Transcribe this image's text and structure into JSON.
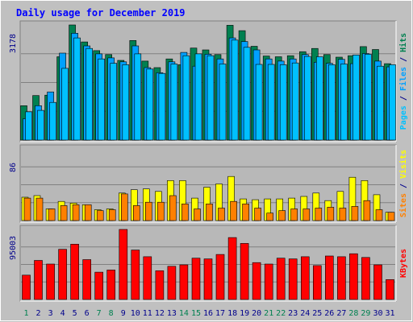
{
  "chart_data": {
    "type": "bar",
    "title": "Daily usage for December 2019",
    "categories": [
      "1",
      "2",
      "3",
      "4",
      "5",
      "6",
      "7",
      "8",
      "9",
      "10",
      "11",
      "12",
      "13",
      "14",
      "15",
      "16",
      "17",
      "18",
      "19",
      "20",
      "21",
      "22",
      "23",
      "24",
      "25",
      "26",
      "27",
      "28",
      "29",
      "30",
      "31"
    ],
    "weekend_days": [
      "1",
      "7",
      "8",
      "14",
      "15",
      "21",
      "22",
      "28",
      "29"
    ],
    "panels": [
      {
        "name": "hits-files-pages",
        "ymax": 3178,
        "ymax_label": "3178",
        "grid": true,
        "axis_label_parts": [
          {
            "text": "Pages",
            "color": "#00c0ff"
          },
          {
            "text": " / ",
            "color": "#00008b"
          },
          {
            "text": "Files",
            "color": "#00a0ff"
          },
          {
            "text": " / ",
            "color": "#00008b"
          },
          {
            "text": "Hits",
            "color": "#008050"
          }
        ],
        "series": [
          {
            "name": "Hits",
            "color": "#008050",
            "values": [
              950,
              1230,
              1240,
              2300,
              3178,
              2710,
              2470,
              2360,
              2200,
              2750,
              2180,
              2000,
              2240,
              2080,
              2540,
              2490,
              2360,
              3170,
              3020,
              2590,
              2320,
              2300,
              2330,
              2440,
              2530,
              2360,
              2290,
              2330,
              2580,
              2500,
              2110
            ]
          },
          {
            "name": "Files",
            "color": "#00a0ff",
            "values": [
              590,
              950,
              1330,
              2400,
              2950,
              2600,
              2380,
              2270,
              2160,
              2600,
              2000,
              1860,
              2160,
              2420,
              2040,
              2370,
              2240,
              2820,
              2720,
              2490,
              2240,
              2180,
              2240,
              2360,
              2150,
              2120,
              2230,
              2110,
              2390,
              2180,
              2020
            ]
          },
          {
            "name": "Pages",
            "color": "#00c0ff",
            "values": [
              780,
              820,
              1040,
              1980,
              2820,
              2530,
              2240,
              2120,
              2080,
              2380,
              1960,
              1840,
              2100,
              2330,
              2380,
              2330,
              2100,
              2760,
              2560,
              2090,
              2090,
              2080,
              2130,
              2310,
              2300,
              2080,
              2100,
              2350,
              2370,
              2040,
              2080
            ]
          }
        ]
      },
      {
        "name": "visits-sites",
        "ymax": 86,
        "ymax_label": "86",
        "grid": true,
        "axis_label_parts": [
          {
            "text": "Sites",
            "color": "#ff8000"
          },
          {
            "text": " / ",
            "color": "#00008b"
          },
          {
            "text": "Visits",
            "color": "#ffff00"
          }
        ],
        "series": [
          {
            "name": "Visits",
            "color": "#ffff00",
            "values": [
              28,
              30,
              14,
              23,
              21,
              19,
              13,
              14,
              33,
              37,
              38,
              35,
              48,
              48,
              27,
              40,
              44,
              53,
              26,
              25,
              26,
              26,
              27,
              29,
              33,
              24,
              35,
              52,
              48,
              31,
              10
            ]
          },
          {
            "name": "Sites",
            "color": "#ff8000",
            "values": [
              27,
              27,
              14,
              18,
              19,
              19,
              12,
              13,
              32,
              18,
              22,
              22,
              30,
              20,
              14,
              20,
              15,
              23,
              20,
              15,
              9,
              12,
              14,
              14,
              15,
              16,
              15,
              17,
              24,
              13,
              10
            ]
          }
        ]
      },
      {
        "name": "kbytes",
        "ymax": 95003,
        "ymax_label": "95003",
        "grid": true,
        "axis_label_parts": [
          {
            "text": "KBytes",
            "color": "#ff0000"
          }
        ],
        "series": [
          {
            "name": "KBytes",
            "color": "#ff0000",
            "values": [
              33000,
              53000,
              48000,
              68000,
              75000,
              54000,
              37000,
              40000,
              95000,
              67000,
              58000,
              39000,
              45000,
              47000,
              56000,
              55000,
              61000,
              84000,
              76000,
              50000,
              48000,
              56000,
              55000,
              58000,
              46000,
              59000,
              58000,
              62000,
              57000,
              47000,
              27000
            ]
          }
        ]
      }
    ]
  },
  "colors": {
    "background": "#c0c0c0",
    "panel": "#b8b8b8",
    "title": "#0000ff",
    "label": "#00008b",
    "weekend_label": "#008050"
  }
}
